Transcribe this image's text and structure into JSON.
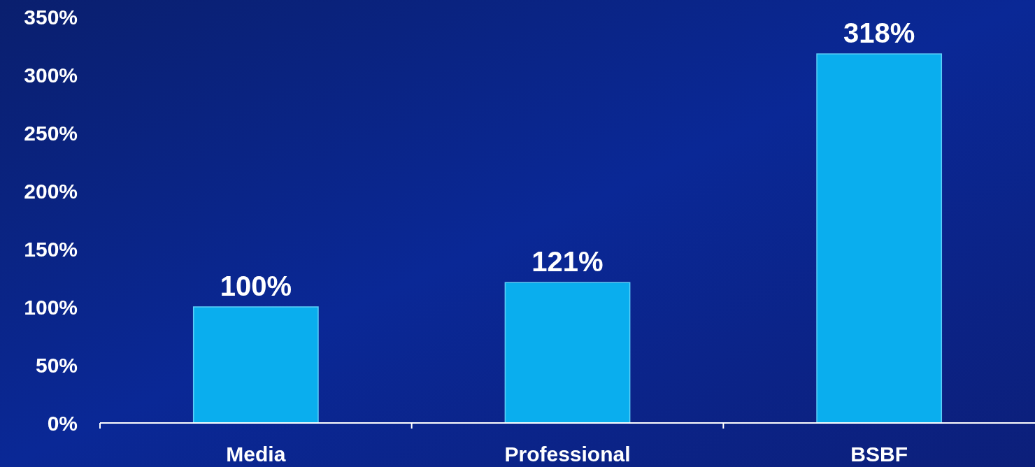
{
  "chart_data": {
    "type": "bar",
    "categories": [
      "Media",
      "Professional",
      "BSBF"
    ],
    "values": [
      100,
      121,
      318
    ],
    "value_labels": [
      "100%",
      "121%",
      "318%"
    ],
    "color": "#0aaeee",
    "ylim": [
      0,
      350
    ],
    "yticks": [
      {
        "value": 0,
        "label": "0%"
      },
      {
        "value": 50,
        "label": "50%"
      },
      {
        "value": 100,
        "label": "100%"
      },
      {
        "value": 150,
        "label": "150%"
      },
      {
        "value": 200,
        "label": "200%"
      },
      {
        "value": 250,
        "label": "250%"
      },
      {
        "value": 300,
        "label": "300%"
      },
      {
        "value": 350,
        "label": "350%"
      }
    ],
    "grid": false
  }
}
